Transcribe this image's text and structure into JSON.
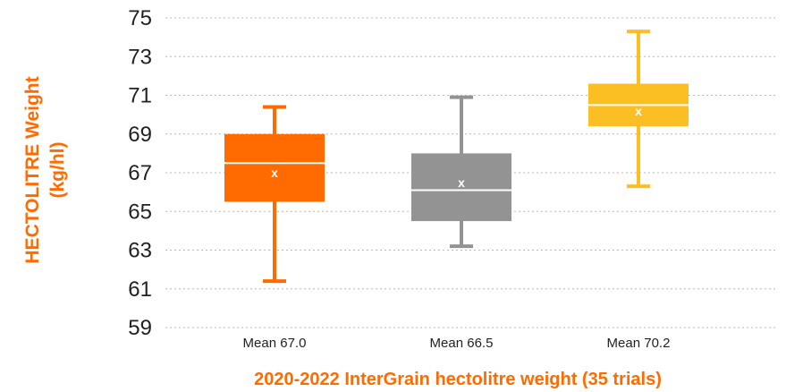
{
  "chart_data": {
    "type": "box",
    "title": "",
    "xlabel": "2020-2022 InterGrain hectolitre weight (35 trials)",
    "ylabel_lines": [
      "HECTOLITRE Weight",
      "(kg/hl)"
    ],
    "ylim": [
      59,
      75
    ],
    "yticks": [
      "59",
      "61",
      "63",
      "65",
      "67",
      "69",
      "71",
      "73",
      "75"
    ],
    "grid": true,
    "categories": [
      "Mean 67.0",
      "Mean 66.5",
      "Mean 70.2"
    ],
    "series": [
      {
        "color": "#ff6b00",
        "whisker_low": 61.4,
        "q1": 65.5,
        "median": 67.5,
        "q3": 69.0,
        "whisker_high": 70.4,
        "mean": 67.0,
        "mean_marker": "x"
      },
      {
        "color": "#939393",
        "whisker_low": 63.2,
        "q1": 64.5,
        "median": 66.1,
        "q3": 68.0,
        "whisker_high": 70.9,
        "mean": 66.5,
        "mean_marker": "x"
      },
      {
        "color": "#fbbf24",
        "whisker_low": 66.3,
        "q1": 69.4,
        "median": 70.5,
        "q3": 71.6,
        "whisker_high": 74.3,
        "mean": 70.2,
        "mean_marker": "x"
      }
    ]
  }
}
